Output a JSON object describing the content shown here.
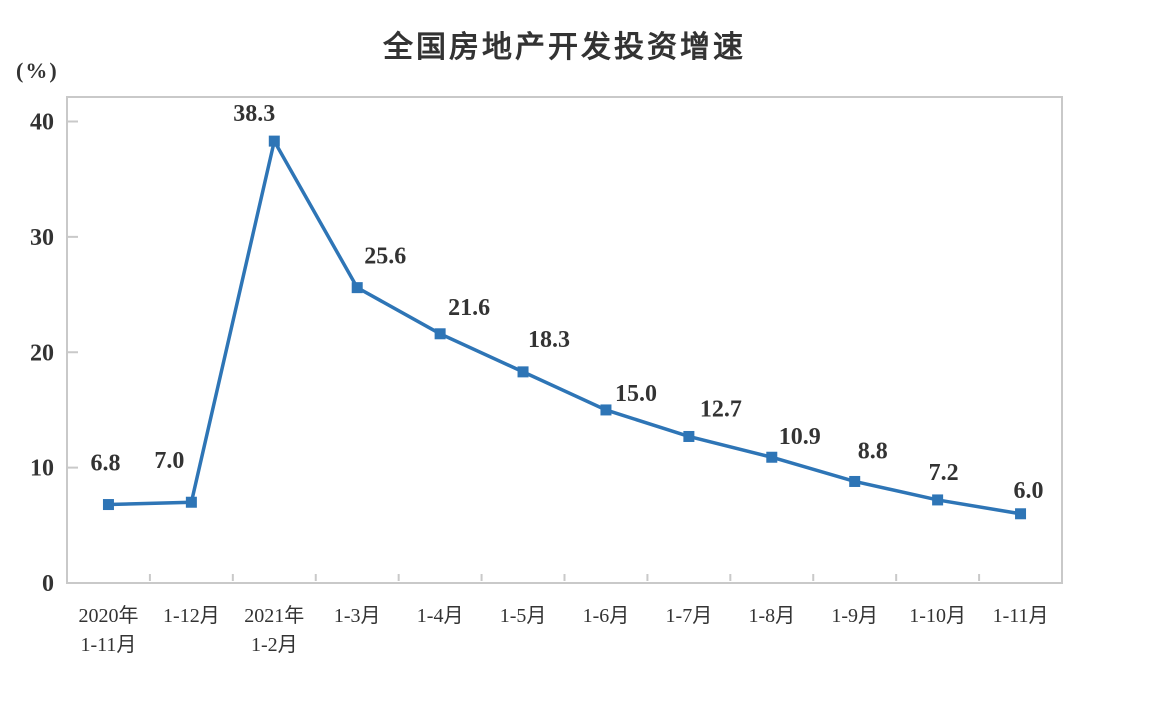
{
  "chart_data": {
    "type": "line",
    "title": "全国房地产开发投资增速",
    "ylabel": "(%)",
    "categories": [
      [
        "2020年",
        "1-11月"
      ],
      [
        "1-12月"
      ],
      [
        "2021年",
        "1-2月"
      ],
      [
        "1-3月"
      ],
      [
        "1-4月"
      ],
      [
        "1-5月"
      ],
      [
        "1-6月"
      ],
      [
        "1-7月"
      ],
      [
        "1-8月"
      ],
      [
        "1-9月"
      ],
      [
        "1-10月"
      ],
      [
        "1-11月"
      ]
    ],
    "values": [
      6.8,
      7.0,
      38.3,
      25.6,
      21.6,
      18.3,
      15.0,
      12.7,
      10.9,
      8.8,
      7.2,
      6.0
    ],
    "data_labels": [
      "6.8",
      "7.0",
      "38.3",
      "25.6",
      "21.6",
      "18.3",
      "15.0",
      "12.7",
      "10.9",
      "8.8",
      "7.2",
      "6.0"
    ],
    "y_ticks": [
      0,
      10,
      20,
      30,
      40
    ],
    "ylim": [
      0,
      42
    ],
    "grid": false,
    "legend": "none",
    "marker": "square",
    "series_color": "#2E75B6",
    "frame_color": "#c9c9c9",
    "text_color": "#333333",
    "background_color": "#ffffff"
  }
}
